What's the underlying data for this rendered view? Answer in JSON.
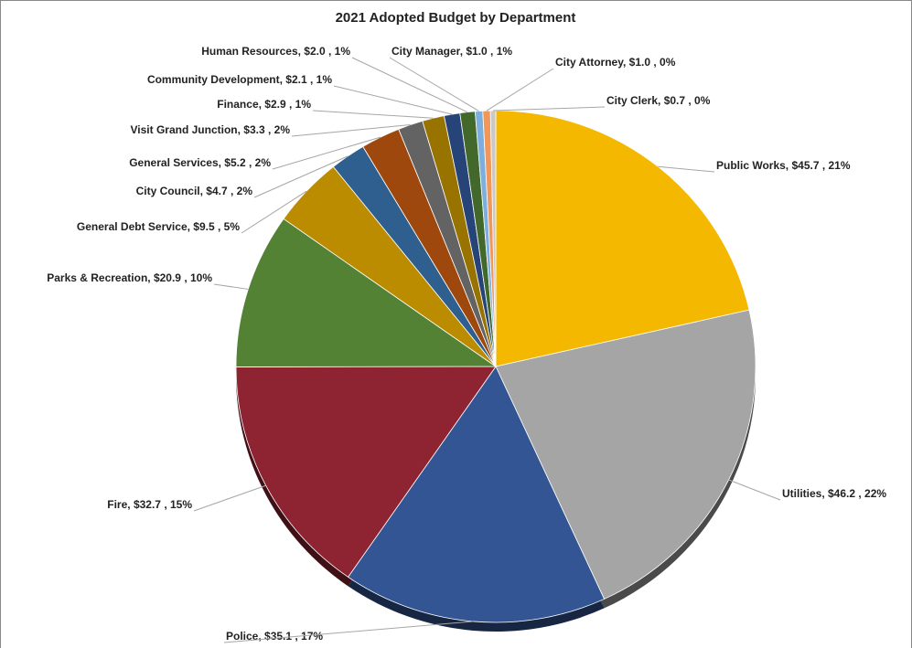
{
  "chart_data": {
    "type": "pie",
    "title": "2021 Adopted Budget by Department",
    "categories": [
      "Public Works",
      "Utilities",
      "Police",
      "Fire",
      "Parks & Recreation",
      "General Debt Service",
      "City Council",
      "General Services",
      "Visit Grand Junction",
      "Finance",
      "Community Development",
      "Human Resources",
      "City Manager",
      "City Attorney",
      "City Clerk"
    ],
    "values": [
      45.7,
      46.2,
      35.1,
      32.7,
      20.9,
      9.5,
      4.7,
      5.2,
      3.3,
      2.9,
      2.1,
      2.0,
      1.0,
      1.0,
      0.7
    ],
    "value_labels": [
      ", $45.7 , 21%",
      ", $46.2 , 22%",
      ", $35.1 , 17%",
      ", $32.7 , 15%",
      ", $20.9 , 10%",
      ", $9.5 , 5%",
      ", $4.7 , 2%",
      ", $5.2 , 2%",
      ", $3.3 , 2%",
      ", $2.9 , 1%",
      ", $2.1 , 1%",
      ", $2.0 , 1%",
      ", $1.0 , 1%",
      ", $1.0 , 0%",
      ", $0.7 , 0%"
    ],
    "colors": [
      "#f4b800",
      "#a5a5a5",
      "#335593",
      "#8e2332",
      "#548235",
      "#bc8c00",
      "#2e5f8e",
      "#9e480e",
      "#636363",
      "#997300",
      "#264478",
      "#43682b",
      "#7cafdd",
      "#f1975a",
      "#c9c9c9"
    ]
  }
}
